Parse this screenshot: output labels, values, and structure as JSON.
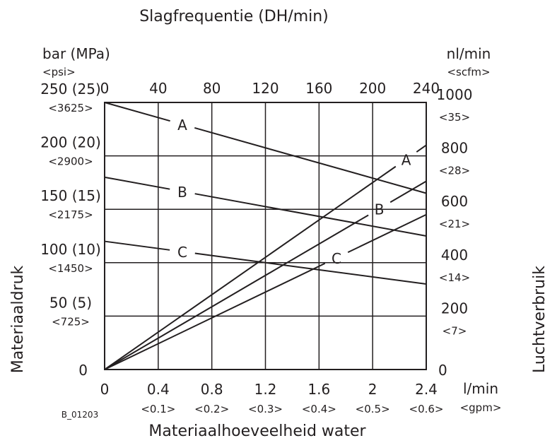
{
  "chart_data": {
    "type": "line",
    "title": "Slagfrequentie (DH/min)",
    "xlabel": "Materiaalhoeveelheid water",
    "ylabel_left": "Materiaaldruk",
    "ylabel_right": "Luchtverbruik",
    "figure_code": "B_01203",
    "x_axis": {
      "range": [
        0,
        2.4
      ],
      "unit": "l/min",
      "unit_alt": "<gpm>",
      "ticks": [
        {
          "v": 0,
          "label": "0",
          "alt": ""
        },
        {
          "v": 0.4,
          "label": "0.4",
          "alt": "<0.1>"
        },
        {
          "v": 0.8,
          "label": "0.8",
          "alt": "<0.2>"
        },
        {
          "v": 1.2,
          "label": "1.2",
          "alt": "<0.3>"
        },
        {
          "v": 1.6,
          "label": "1.6",
          "alt": "<0.4>"
        },
        {
          "v": 2.0,
          "label": "2",
          "alt": "<0.5>"
        },
        {
          "v": 2.4,
          "label": "2.4",
          "alt": "<0.6>"
        }
      ]
    },
    "x_top_axis": {
      "range": [
        0,
        240
      ],
      "ticks": [
        {
          "v": 0,
          "label": "0"
        },
        {
          "v": 40,
          "label": "40"
        },
        {
          "v": 80,
          "label": "80"
        },
        {
          "v": 120,
          "label": "120"
        },
        {
          "v": 160,
          "label": "160"
        },
        {
          "v": 200,
          "label": "200"
        },
        {
          "v": 240,
          "label": "240"
        }
      ]
    },
    "y_left_axis": {
      "range": [
        0,
        250
      ],
      "unit": "bar (MPa)",
      "unit_alt": "<psi>",
      "ticks": [
        {
          "v": 0,
          "label": "0",
          "alt": ""
        },
        {
          "v": 50,
          "label": "50 (5)",
          "alt": "<725>"
        },
        {
          "v": 100,
          "label": "100 (10)",
          "alt": "<1450>"
        },
        {
          "v": 150,
          "label": "150 (15)",
          "alt": "<2175>"
        },
        {
          "v": 200,
          "label": "200 (20)",
          "alt": "<2900>"
        },
        {
          "v": 250,
          "label": "250 (25)",
          "alt": "<3625>"
        }
      ]
    },
    "y_right_axis": {
      "range": [
        0,
        1000
      ],
      "unit": "nl/min",
      "unit_alt": "<scfm>",
      "ticks": [
        {
          "v": 0,
          "label": "0",
          "alt": ""
        },
        {
          "v": 200,
          "label": "200",
          "alt": "<7>"
        },
        {
          "v": 400,
          "label": "400",
          "alt": "<14>"
        },
        {
          "v": 600,
          "label": "600",
          "alt": "<21>"
        },
        {
          "v": 800,
          "label": "800",
          "alt": "<28>"
        },
        {
          "v": 1000,
          "label": "1000",
          "alt": "<35>"
        }
      ]
    },
    "grid": true,
    "series": [
      {
        "name": "A",
        "axis": "left",
        "x": [
          0,
          2.4
        ],
        "y": [
          250,
          165
        ],
        "label_at_x": 0.58
      },
      {
        "name": "B",
        "axis": "left",
        "x": [
          0,
          2.4
        ],
        "y": [
          180,
          125
        ],
        "label_at_x": 0.58
      },
      {
        "name": "C",
        "axis": "left",
        "x": [
          0,
          2.4
        ],
        "y": [
          120,
          80
        ],
        "label_at_x": 0.58
      },
      {
        "name": "A",
        "axis": "right",
        "x": [
          0,
          2.4
        ],
        "y": [
          0,
          840
        ],
        "label_at_x": 2.25
      },
      {
        "name": "B",
        "axis": "right",
        "x": [
          0,
          2.4
        ],
        "y": [
          0,
          705
        ],
        "label_at_x": 2.05
      },
      {
        "name": "C",
        "axis": "right",
        "x": [
          0,
          2.4
        ],
        "y": [
          0,
          580
        ],
        "label_at_x": 1.73
      }
    ]
  }
}
